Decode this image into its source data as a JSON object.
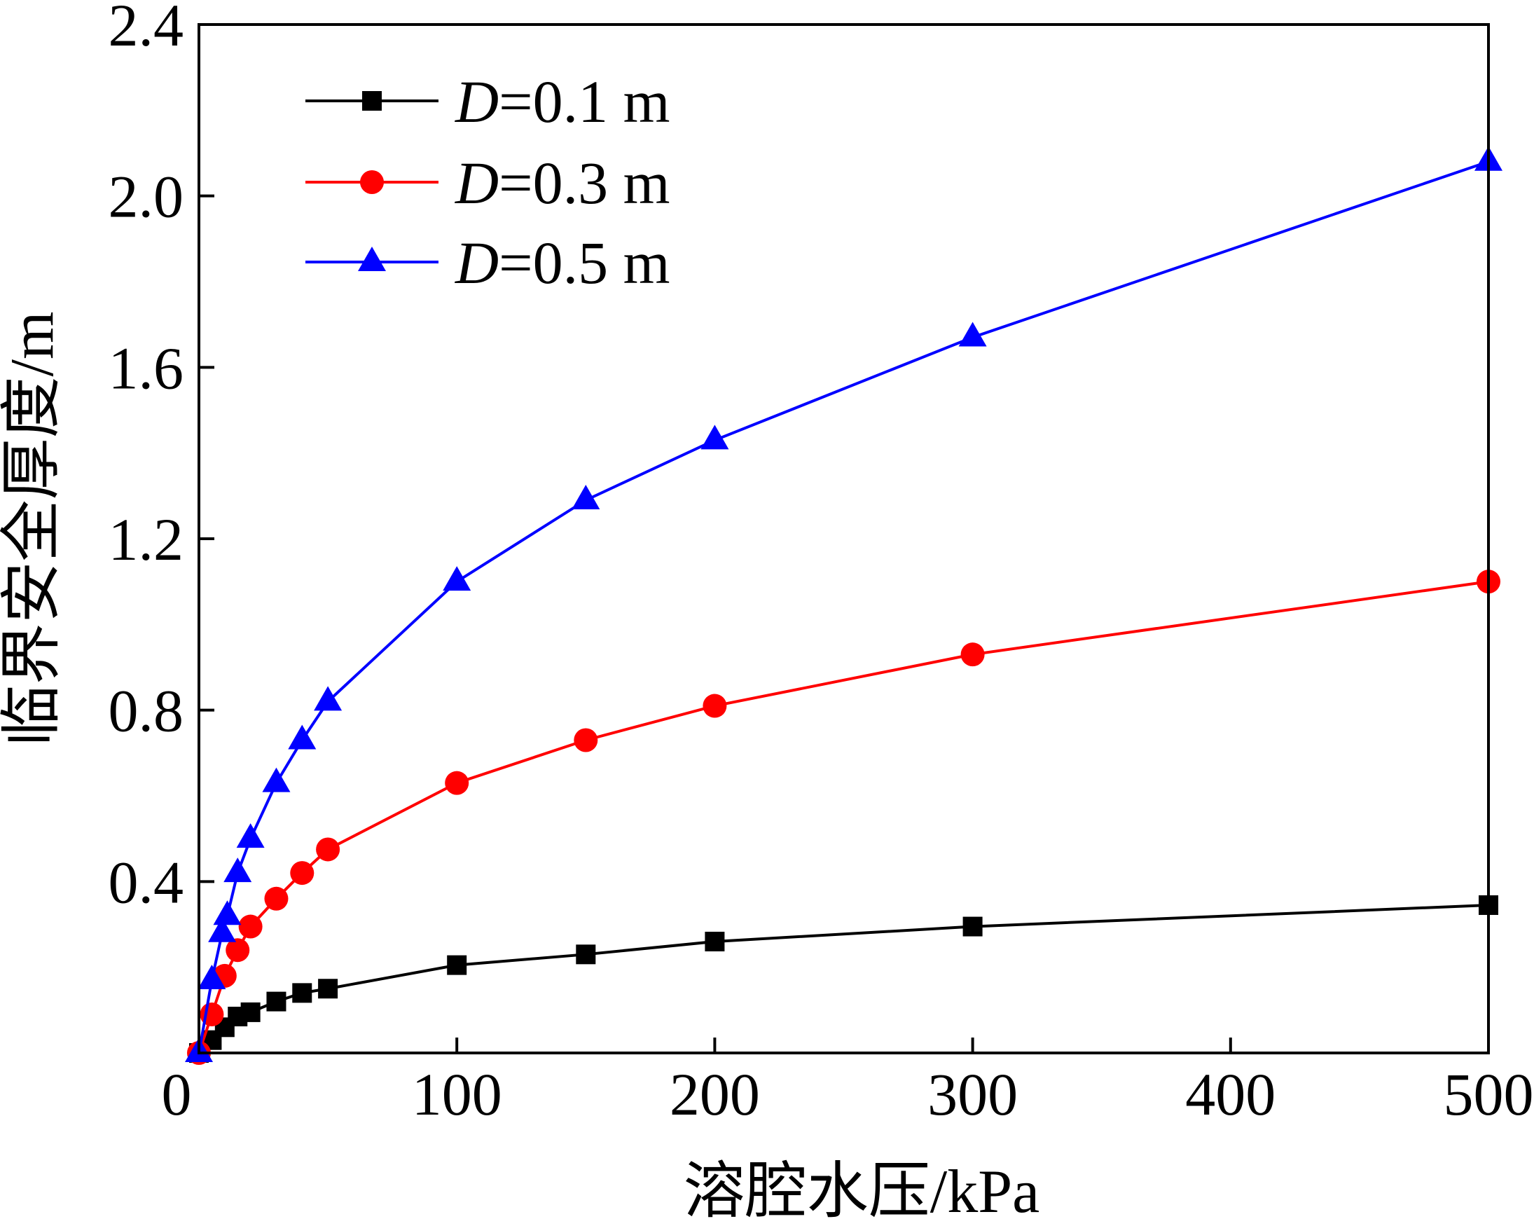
{
  "chart_data": {
    "type": "line",
    "title": "",
    "xlabel": "溶腔水压/kPa",
    "ylabel": "临界安全厚度/m",
    "xlim": [
      0,
      500
    ],
    "ylim": [
      0,
      2.4
    ],
    "xticks": [
      "0",
      "100",
      "200",
      "300",
      "400",
      "500"
    ],
    "xtick_values": [
      0,
      100,
      200,
      300,
      400,
      500
    ],
    "yticks": [
      "0.4",
      "0.8",
      "1.2",
      "1.6",
      "2.0",
      "2.4"
    ],
    "ytick_values": [
      0.4,
      0.8,
      1.2,
      1.6,
      2.0,
      2.4
    ],
    "legend_position": "top-left",
    "series": [
      {
        "name": "D=0.1 m",
        "prefix": "D",
        "suffix": "=0.1 m",
        "color": "#000000",
        "marker": "square",
        "x": [
          0,
          5,
          10,
          15,
          20,
          30,
          40,
          50,
          100,
          150,
          200,
          300,
          500
        ],
        "y": [
          0,
          0.03,
          0.06,
          0.085,
          0.095,
          0.12,
          0.14,
          0.15,
          0.205,
          0.23,
          0.26,
          0.295,
          0.345
        ]
      },
      {
        "name": "D=0.3 m",
        "prefix": "D",
        "suffix": "=0.3 m",
        "color": "#ff0000",
        "marker": "circle",
        "x": [
          0,
          5,
          10,
          15,
          20,
          30,
          40,
          50,
          100,
          150,
          200,
          300,
          500
        ],
        "y": [
          0,
          0.09,
          0.18,
          0.24,
          0.295,
          0.36,
          0.42,
          0.475,
          0.63,
          0.73,
          0.81,
          0.93,
          1.1
        ]
      },
      {
        "name": "D=0.5 m",
        "prefix": "D",
        "suffix": "=0.5 m",
        "color": "#0000ff",
        "marker": "triangle",
        "x": [
          0,
          5,
          9,
          11,
          15,
          20,
          30,
          40,
          50,
          100,
          150,
          200,
          300,
          500
        ],
        "y": [
          0,
          0.17,
          0.28,
          0.32,
          0.42,
          0.5,
          0.63,
          0.73,
          0.82,
          1.1,
          1.29,
          1.43,
          1.67,
          2.08
        ]
      }
    ]
  }
}
